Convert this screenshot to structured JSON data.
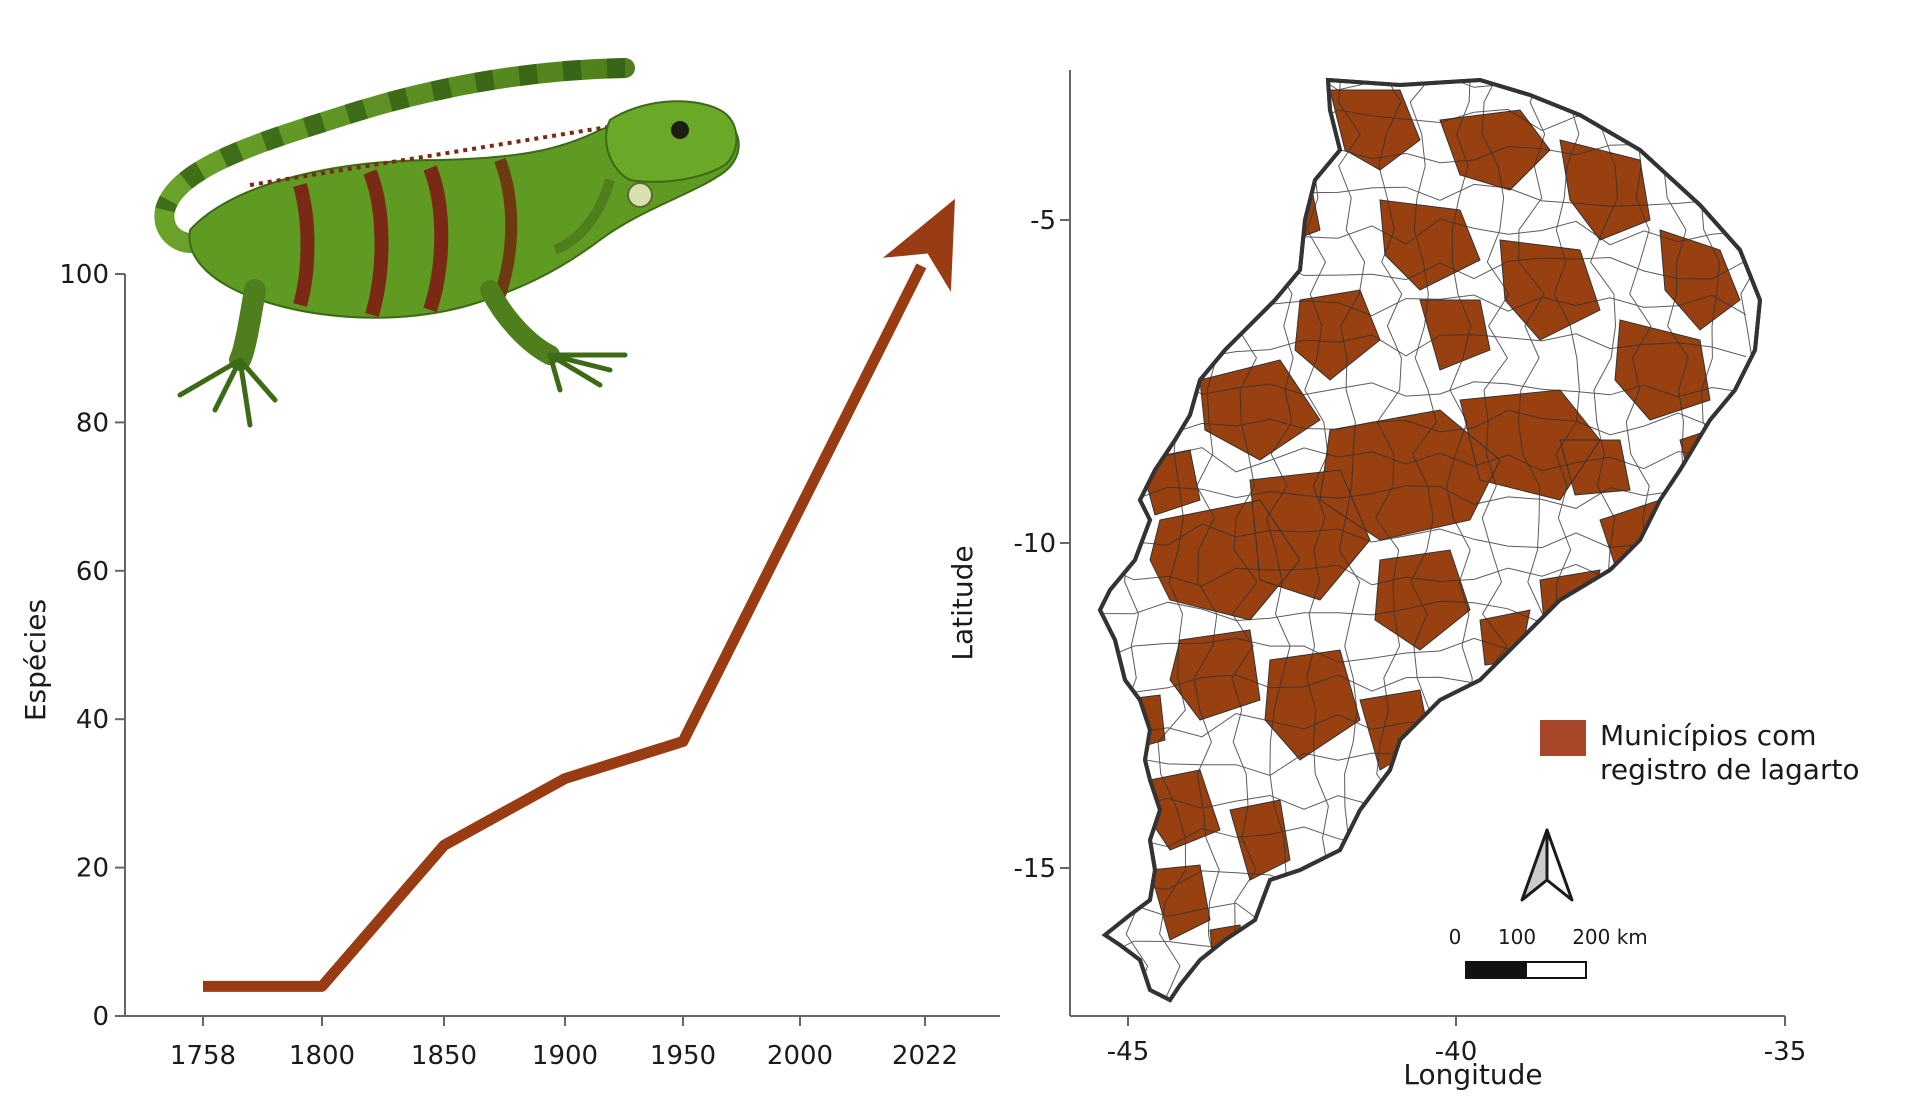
{
  "colors": {
    "line": "#9a3c13",
    "region": "#98400f",
    "legend_swatch": "#a8462a",
    "outline": "#333333",
    "axis": "#666666",
    "lizard_body": "#5f9a22",
    "lizard_dark": "#2f5a12",
    "lizard_band": "#7a2a14"
  },
  "icons": {
    "illustration": "green-iguana-illustration",
    "north_arrow": "north-arrow-icon"
  },
  "chart_data": [
    {
      "type": "line",
      "ylabel": "Espécies",
      "xlabel": "",
      "x": [
        "1758",
        "1800",
        "1850",
        "1900",
        "1950",
        "2000",
        "2022"
      ],
      "values": [
        4,
        4,
        23,
        32,
        37,
        null,
        null
      ],
      "trend_arrow_to": {
        "x": "2022",
        "y": 98
      },
      "ylim": [
        0,
        100
      ],
      "yticks": [
        "0",
        "20",
        "40",
        "60",
        "80",
        "100"
      ],
      "grid": false
    },
    {
      "type": "map",
      "xlabel": "Longitude",
      "ylabel": "Latitude",
      "xticks": [
        "-45",
        "-40",
        "-35"
      ],
      "yticks": [
        "-5",
        "-10",
        "-15"
      ],
      "xlim": [
        -45.5,
        -35
      ],
      "ylim": [
        -17.3,
        -2.7
      ],
      "legend": {
        "label_line1": "Municípios com",
        "label_line2": "registro de lagarto",
        "position": "right"
      },
      "scale_bar": {
        "labels": [
          "0",
          "100",
          "200 km"
        ]
      }
    }
  ]
}
